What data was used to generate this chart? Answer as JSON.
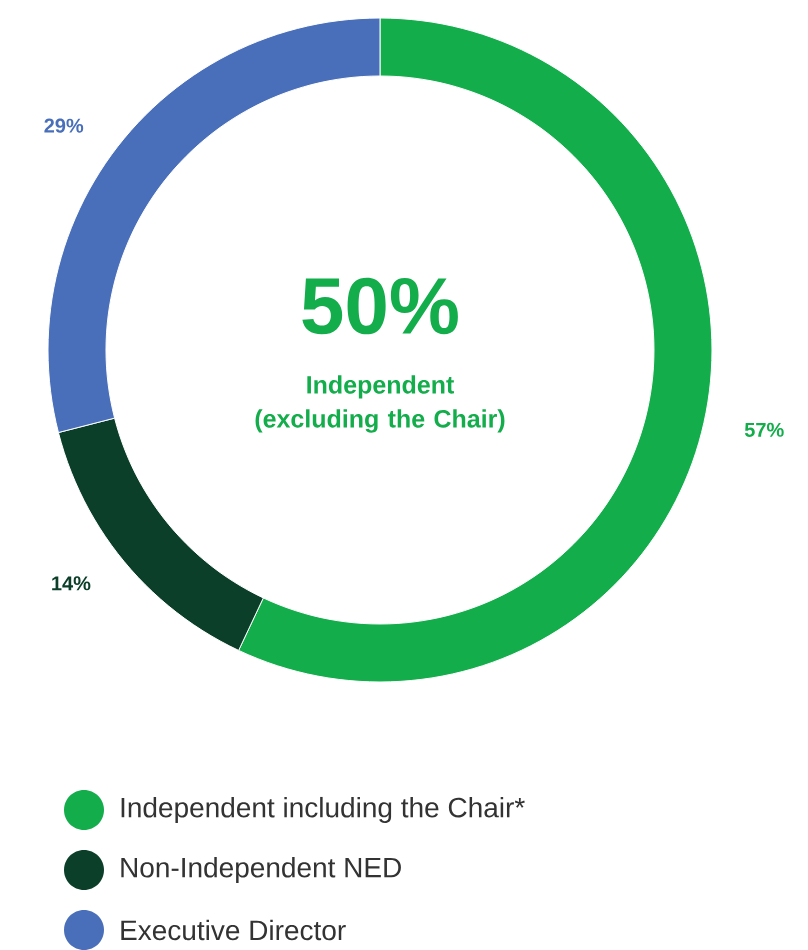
{
  "chart_data": {
    "type": "donut",
    "categories": [
      "Independent including the Chair*",
      "Non-Independent NED",
      "Executive Director"
    ],
    "values": [
      57,
      14,
      29
    ],
    "colors": [
      "#13ad4b",
      "#0b3f2a",
      "#4a6fba"
    ],
    "value_labels": [
      "57%",
      "14%",
      "29%"
    ],
    "legend": "bottom left",
    "annotations": [
      "50%",
      "Independent (excluding the Chair)"
    ]
  }
}
